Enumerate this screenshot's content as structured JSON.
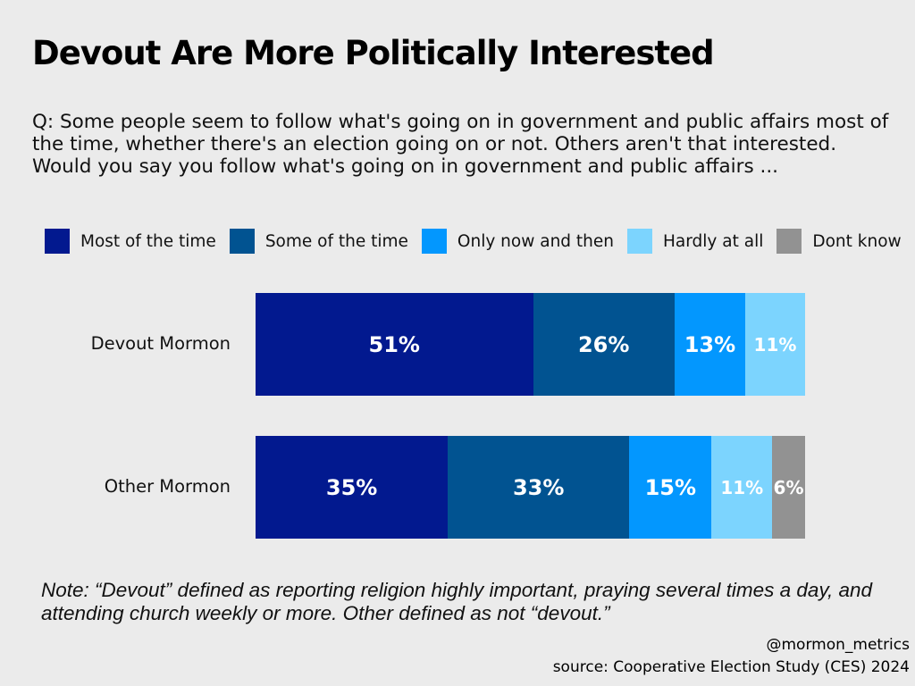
{
  "chart_data": {
    "type": "bar",
    "orientation": "horizontal-stacked-100",
    "title": "Devout Are More Politically Interested",
    "subtitle": "Q: Some people seem to follow what's going on in government and public affairs most of the time, whether there's an election going on or not. Others aren't that interested. Would you say you follow what's going on in government and public affairs ...",
    "categories": [
      "Devout Mormon",
      "Other Mormon"
    ],
    "series": [
      {
        "name": "Most of the time",
        "color": "#02198f",
        "values": [
          51,
          35
        ],
        "labels": [
          "51%",
          "35%"
        ]
      },
      {
        "name": "Some of the time",
        "color": "#015391",
        "values": [
          26,
          33
        ],
        "labels": [
          "26%",
          "33%"
        ]
      },
      {
        "name": "Only now and then",
        "color": "#0397fe",
        "values": [
          13,
          15
        ],
        "labels": [
          "13%",
          "15%"
        ]
      },
      {
        "name": "Hardly at all",
        "color": "#7cd4fe",
        "values": [
          11,
          11
        ],
        "labels": [
          "11%",
          "11%"
        ]
      },
      {
        "name": "Dont know",
        "color": "#929292",
        "values": [
          0,
          6
        ],
        "labels": [
          "",
          "6%"
        ]
      }
    ],
    "legend_position": "top",
    "grid": false,
    "xlim": [
      0,
      100
    ]
  },
  "note": "Note: “Devout” defined as reporting religion highly important, praying several times a day, and attending church weekly or more. Other defined as not “devout.”",
  "handle": "@mormon_metrics",
  "source": "source: Cooperative Election Study (CES) 2024"
}
